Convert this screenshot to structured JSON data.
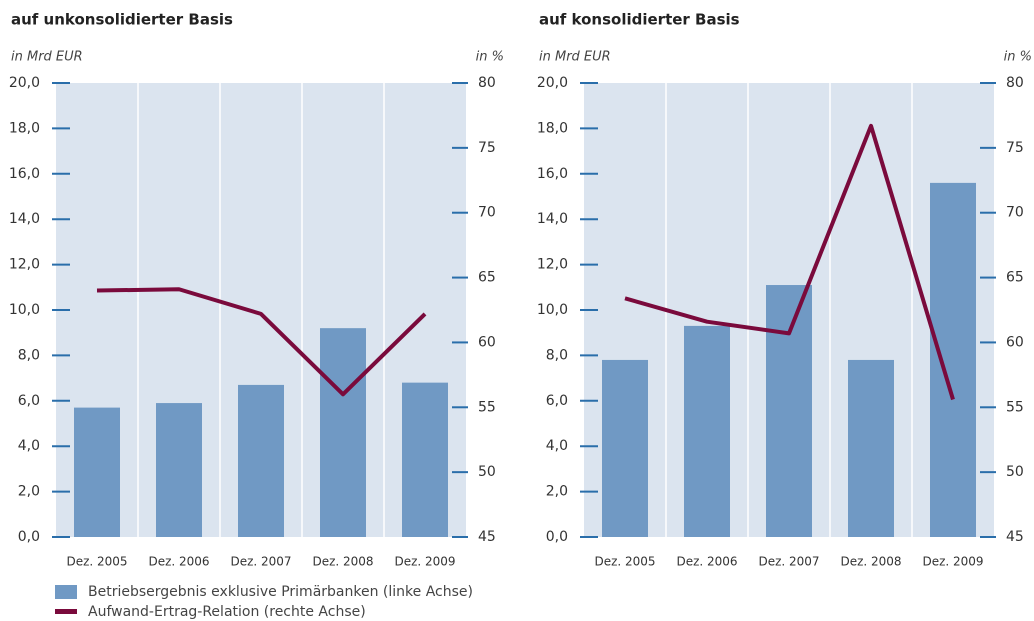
{
  "chart_data": [
    {
      "type": "bar-line",
      "title": "auf unkonsolidierter Basis",
      "y_label": "in Mrd EUR",
      "y2_label": "in %",
      "categories": [
        "Dez. 2005",
        "Dez. 2006",
        "Dez. 2007",
        "Dez. 2008",
        "Dez. 2009"
      ],
      "series": [
        {
          "name": "Betriebsergebnis exklusive Primärbanken (linke Achse)",
          "type": "bar",
          "color": "#7099c4",
          "values": [
            5.7,
            5.9,
            6.7,
            9.2,
            6.8
          ]
        },
        {
          "name": "Aufwand-Ertrag-Relation (rechte Achse)",
          "type": "line",
          "axis": "y2",
          "color": "#7a0a3c",
          "values": [
            64.0,
            64.1,
            62.2,
            56.0,
            62.2
          ]
        }
      ],
      "ylim": [
        0,
        20
      ],
      "yticks": [
        {
          "value": 0,
          "label": "0,0"
        },
        {
          "value": 2,
          "label": "2,0"
        },
        {
          "value": 4,
          "label": "4,0"
        },
        {
          "value": 6,
          "label": "6,0"
        },
        {
          "value": 8,
          "label": "8,0"
        },
        {
          "value": 10,
          "label": "10,0"
        },
        {
          "value": 12,
          "label": "12,0"
        },
        {
          "value": 14,
          "label": "14,0"
        },
        {
          "value": 16,
          "label": "16,0"
        },
        {
          "value": 18,
          "label": "18,0"
        },
        {
          "value": 20,
          "label": "20,0"
        }
      ],
      "y2lim": [
        45,
        80
      ],
      "y2ticks": [
        45,
        50,
        55,
        60,
        65,
        70,
        75,
        80
      ]
    },
    {
      "type": "bar-line",
      "title": "auf konsolidierter Basis",
      "y_label": "in Mrd EUR",
      "y2_label": "in %",
      "categories": [
        "Dez. 2005",
        "Dez. 2006",
        "Dez. 2007",
        "Dez. 2008",
        "Dez. 2009"
      ],
      "series": [
        {
          "type": "bar",
          "color": "#7099c4",
          "values": [
            7.8,
            9.3,
            11.1,
            7.8,
            15.6
          ]
        },
        {
          "type": "line",
          "axis": "y2",
          "color": "#7a0a3c",
          "values": [
            63.4,
            61.6,
            60.7,
            76.7,
            55.6
          ]
        }
      ],
      "ylim": [
        0,
        20
      ],
      "yticks": [
        {
          "value": 0,
          "label": "0,0"
        },
        {
          "value": 2,
          "label": "2,0"
        },
        {
          "value": 4,
          "label": "4,0"
        },
        {
          "value": 6,
          "label": "6,0"
        },
        {
          "value": 8,
          "label": "8,0"
        },
        {
          "value": 10,
          "label": "10,0"
        },
        {
          "value": 12,
          "label": "12,0"
        },
        {
          "value": 14,
          "label": "14,0"
        },
        {
          "value": 16,
          "label": "16,0"
        },
        {
          "value": 18,
          "label": "18,0"
        },
        {
          "value": 20,
          "label": "20,0"
        }
      ],
      "y2lim": [
        45,
        80
      ],
      "y2ticks": [
        45,
        50,
        55,
        60,
        65,
        70,
        75,
        80
      ]
    }
  ]
}
